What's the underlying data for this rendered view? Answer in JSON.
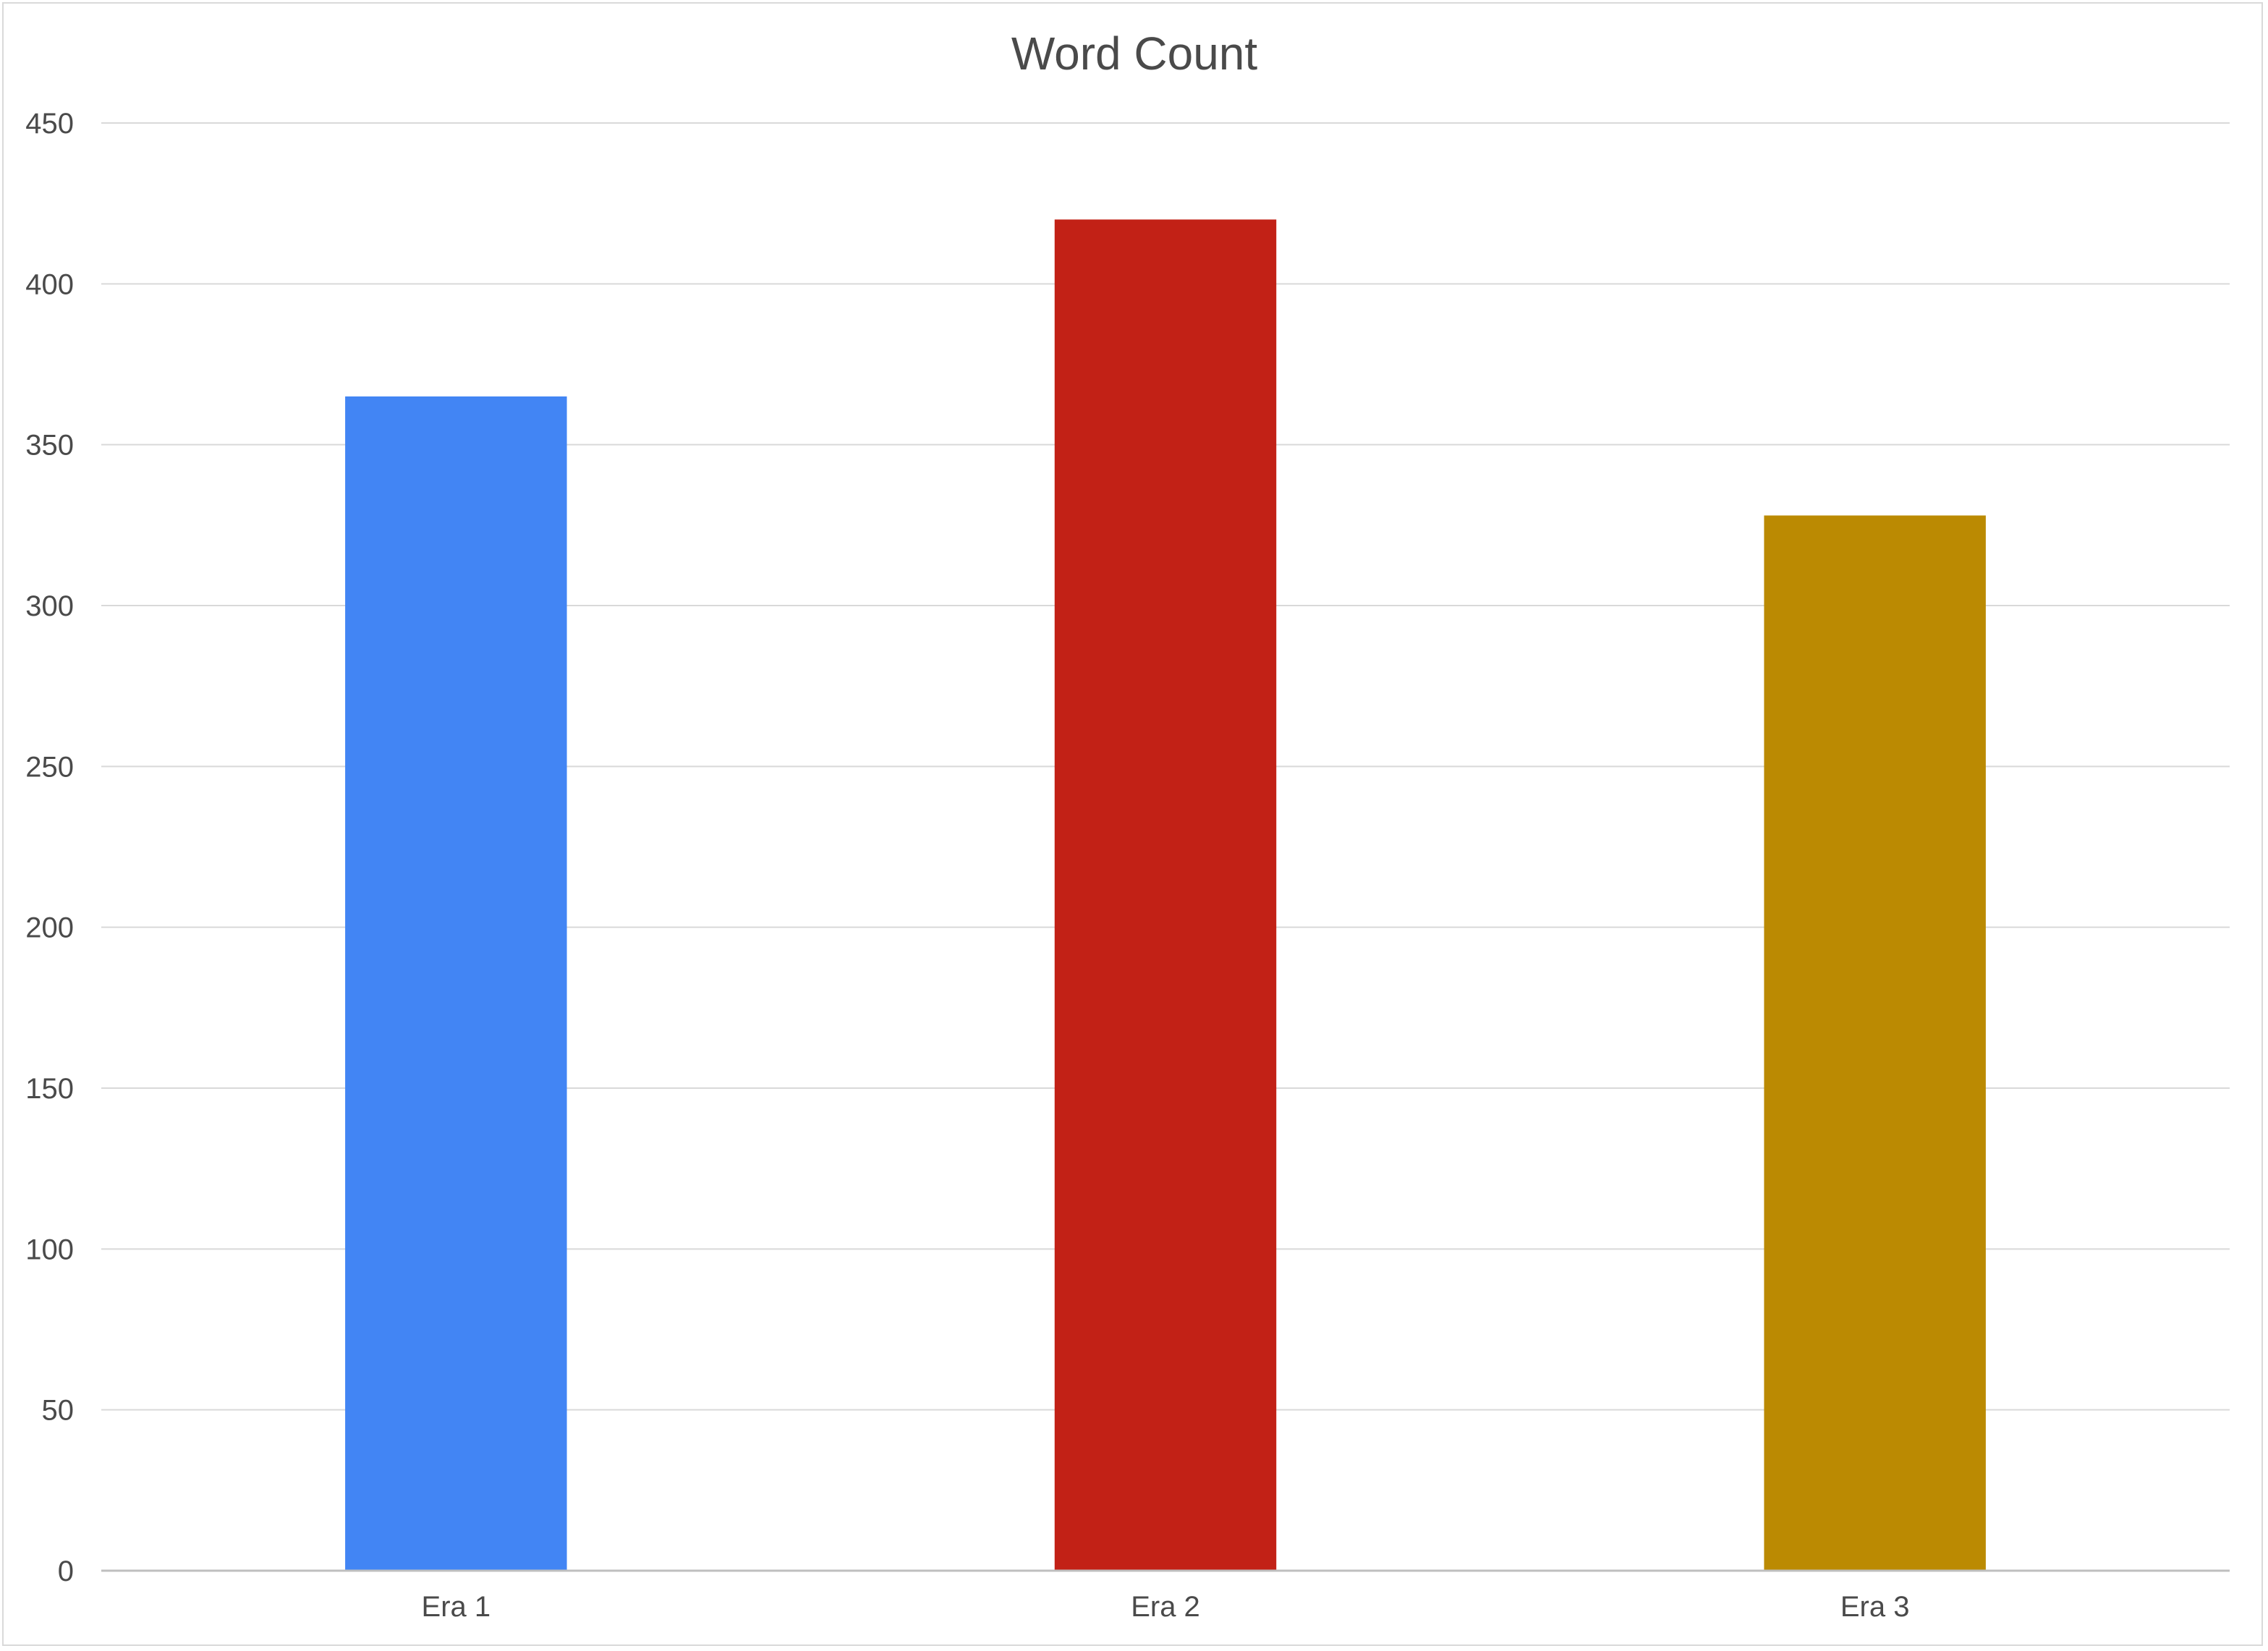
{
  "chart_data": {
    "type": "bar",
    "title": "Word Count",
    "xlabel": "",
    "ylabel": "",
    "categories": [
      "Era 1",
      "Era 2",
      "Era 3"
    ],
    "values": [
      365,
      420,
      328
    ],
    "colors": [
      "#4285f4",
      "#c22116",
      "#bb8a02"
    ],
    "ylim": [
      0,
      450
    ],
    "yticks": [
      0,
      50,
      100,
      150,
      200,
      250,
      300,
      350,
      400,
      450
    ],
    "grid": true,
    "legend": "none"
  }
}
